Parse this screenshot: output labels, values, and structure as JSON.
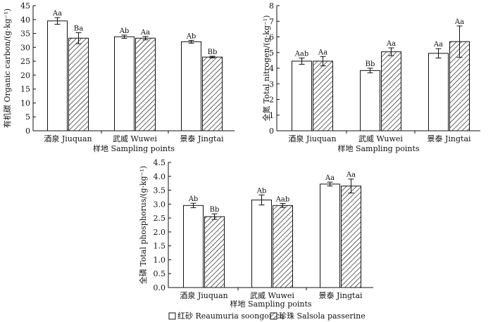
{
  "legend": [
    {
      "label": "红砂 Reaumuria soongorica",
      "pattern": "open"
    },
    {
      "label": "珍珠 Salsola passerine",
      "pattern": "hatched"
    }
  ],
  "chart_data": [
    {
      "type": "bar",
      "xlabel": "样地 Sampling points",
      "ylabel": "有机碳 Organic carbon/(g·kg⁻¹)",
      "ylim": [
        0,
        45
      ],
      "yticks": [
        0,
        5,
        10,
        15,
        20,
        25,
        30,
        35,
        40,
        45
      ],
      "categories": [
        "酒泉 Jiuquan",
        "武威 Wuwei",
        "景泰 Jingtai"
      ],
      "series": [
        {
          "name": "红砂 Reaumuria soongorica",
          "values": [
            39.5,
            33.8,
            32.0
          ],
          "errors": [
            1.2,
            0.6,
            0.5
          ],
          "labels": [
            "Aa",
            "Ab",
            "Ab"
          ]
        },
        {
          "name": "珍珠 Salsola passerine",
          "values": [
            33.3,
            33.3,
            26.5
          ],
          "errors": [
            2.0,
            0.6,
            0.3
          ],
          "labels": [
            "Ba",
            "Aa",
            "Bb"
          ]
        }
      ]
    },
    {
      "type": "bar",
      "xlabel": "样地 Sampling points",
      "ylabel": "全氮 Total nitrogen/(g·kg⁻¹)",
      "ylim": [
        0,
        8
      ],
      "yticks": [
        0,
        1,
        2,
        3,
        4,
        5,
        6,
        7,
        8
      ],
      "categories": [
        "酒泉 Jiuquan",
        "武威 Wuwei",
        "景泰 Jingtai"
      ],
      "series": [
        {
          "name": "红砂 Reaumuria soongorica",
          "values": [
            4.45,
            3.85,
            4.95
          ],
          "errors": [
            0.2,
            0.15,
            0.3
          ],
          "labels": [
            "Aab",
            "Bb",
            "Aa"
          ]
        },
        {
          "name": "珍珠 Salsola passerine",
          "values": [
            4.45,
            5.05,
            5.7
          ],
          "errors": [
            0.3,
            0.25,
            1.0
          ],
          "labels": [
            "Aa",
            "Aa",
            "Aa"
          ]
        }
      ]
    },
    {
      "type": "bar",
      "xlabel": "样地 Sampling points",
      "ylabel": "全磷 Total phosphorus/(g·kg⁻¹)",
      "ylim": [
        0,
        4.5
      ],
      "yticks": [
        0,
        0.5,
        1.0,
        1.5,
        2.0,
        2.5,
        3.0,
        3.5,
        4.0,
        4.5
      ],
      "tick_decimals": 1,
      "categories": [
        "酒泉 Jiuquan",
        "武威 Wuwei",
        "景泰 Jingtai"
      ],
      "series": [
        {
          "name": "红砂 Reaumuria soongorica",
          "values": [
            2.95,
            3.15,
            3.72
          ],
          "errors": [
            0.08,
            0.18,
            0.07
          ],
          "labels": [
            "Ab",
            "Ab",
            "Aa"
          ]
        },
        {
          "name": "珍珠 Salsola passerine",
          "values": [
            2.55,
            2.95,
            3.65
          ],
          "errors": [
            0.1,
            0.07,
            0.25
          ],
          "labels": [
            "Bb",
            "Aab",
            "Aa"
          ]
        }
      ]
    }
  ]
}
